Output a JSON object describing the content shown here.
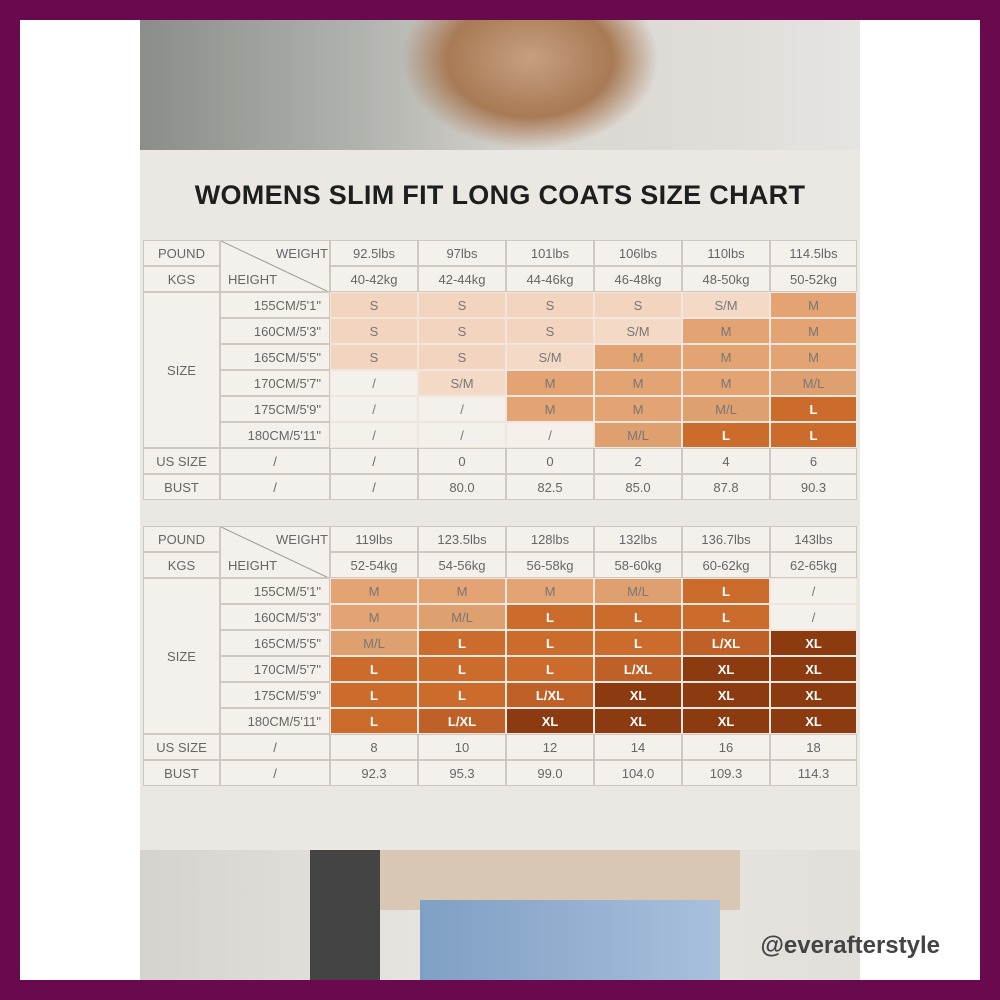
{
  "title": "WOMENS SLIM FIT LONG COATS SIZE CHART",
  "watermark": "@everafterstyle",
  "size_colors": {
    "S": "#f3d4be",
    "S/M": "#f4dac6",
    "M": "#e3a373",
    "M/L": "#dea06f",
    "L": "#cb6c2c",
    "L/XL": "#be6028",
    "XL": "#8c3a10",
    "/": "#f4f1ed"
  },
  "tables": [
    {
      "pound": "POUND",
      "kgs": "KGS",
      "weight": "WEIGHT",
      "height": "HEIGHT",
      "size": "SIZE",
      "us_size": "US SIZE",
      "bust": "BUST",
      "weights": [
        "92.5lbs",
        "97lbs",
        "101lbs",
        "106lbs",
        "110lbs",
        "114.5lbs"
      ],
      "kgs_values": [
        "40-42kg",
        "42-44kg",
        "44-46kg",
        "46-48kg",
        "48-50kg",
        "50-52kg"
      ],
      "heights": [
        "155CM/5'1\"",
        "160CM/5'3\"",
        "165CM/5'5\"",
        "170CM/5'7\"",
        "175CM/5'9\"",
        "180CM/5'11\""
      ],
      "sizes": [
        [
          "S",
          "S",
          "S",
          "S",
          "S/M",
          "M"
        ],
        [
          "S",
          "S",
          "S",
          "S/M",
          "M",
          "M"
        ],
        [
          "S",
          "S",
          "S/M",
          "M",
          "M",
          "M"
        ],
        [
          "/",
          "S/M",
          "M",
          "M",
          "M",
          "M/L"
        ],
        [
          "/",
          "/",
          "M",
          "M",
          "M/L",
          "L"
        ],
        [
          "/",
          "/",
          "/",
          "M/L",
          "L",
          "L"
        ]
      ],
      "us_sizes": [
        "/",
        "/",
        "0",
        "0",
        "2",
        "4",
        "6"
      ],
      "busts": [
        "/",
        "/",
        "80.0",
        "82.5",
        "85.0",
        "87.8",
        "90.3"
      ]
    },
    {
      "pound": "POUND",
      "kgs": "KGS",
      "weight": "WEIGHT",
      "height": "HEIGHT",
      "size": "SIZE",
      "us_size": "US SIZE",
      "bust": "BUST",
      "weights": [
        "119lbs",
        "123.5lbs",
        "128lbs",
        "132lbs",
        "136.7lbs",
        "143lbs"
      ],
      "kgs_values": [
        "52-54kg",
        "54-56kg",
        "56-58kg",
        "58-60kg",
        "60-62kg",
        "62-65kg"
      ],
      "heights": [
        "155CM/5'1\"",
        "160CM/5'3\"",
        "165CM/5'5\"",
        "170CM/5'7\"",
        "175CM/5'9\"",
        "180CM/5'11\""
      ],
      "sizes": [
        [
          "M",
          "M",
          "M",
          "M/L",
          "L",
          "/"
        ],
        [
          "M",
          "M/L",
          "L",
          "L",
          "L",
          "/"
        ],
        [
          "M/L",
          "L",
          "L",
          "L",
          "L/XL",
          "XL"
        ],
        [
          "L",
          "L",
          "L",
          "L/XL",
          "XL",
          "XL"
        ],
        [
          "L",
          "L",
          "L/XL",
          "XL",
          "XL",
          "XL"
        ],
        [
          "L",
          "L/XL",
          "XL",
          "XL",
          "XL",
          "XL"
        ]
      ],
      "us_sizes": [
        "/",
        "8",
        "10",
        "12",
        "14",
        "16",
        "18"
      ],
      "busts": [
        "/",
        "92.3",
        "95.3",
        "99.0",
        "104.0",
        "109.3",
        "114.3"
      ]
    }
  ]
}
